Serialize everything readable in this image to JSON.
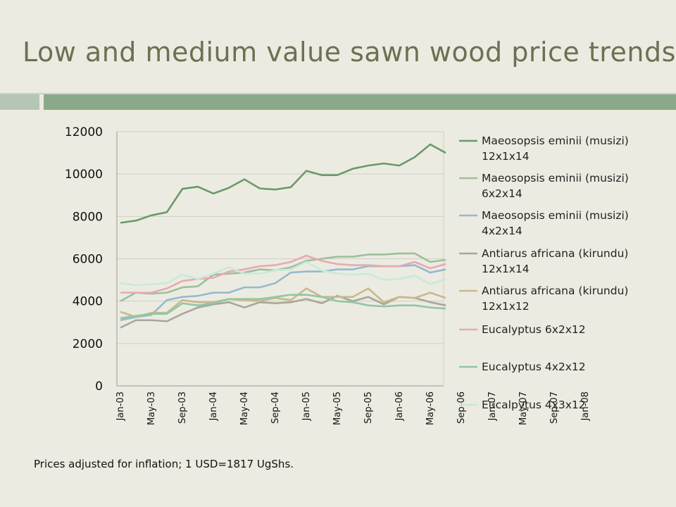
{
  "title": "Low and medium value sawn wood price trends",
  "footnote": "Prices adjusted for inflation; 1 USD=1817 UgShs.",
  "chart_data": {
    "type": "line",
    "title": "",
    "xlabel": "",
    "ylabel": "",
    "ylim": [
      0,
      12000
    ],
    "y_ticks": [
      0,
      2000,
      4000,
      6000,
      8000,
      10000,
      12000
    ],
    "x_tick_labels": [
      "Jan-03",
      "May-03",
      "Sep-03",
      "Jan-04",
      "May-04",
      "Sep-04",
      "Jan-05",
      "May-05",
      "Sep-05",
      "Jan-06",
      "May-06",
      "Sep-06",
      "Jan-07",
      "May-07",
      "Sep-07",
      "Jan-08"
    ],
    "legend_position": "right",
    "grid": "horizontal",
    "series": [
      {
        "name_lines": [
          "Maeosopsis eminii (musizi)",
          "12x1x14"
        ],
        "color": "#6a9a6a",
        "values": [
          7700,
          7800,
          8050,
          8200,
          9300,
          9400,
          9080,
          9350,
          9750,
          9320,
          9270,
          9380,
          10150,
          9950,
          9950,
          10250,
          10400,
          10500,
          10400,
          10800,
          11400,
          11000
        ]
      },
      {
        "name_lines": [
          "Maeosopsis eminii (musizi)",
          "6x2x14"
        ],
        "color": "#9cc09a",
        "values": [
          4000,
          4400,
          4350,
          4400,
          4650,
          4700,
          5250,
          5300,
          5350,
          5500,
          5450,
          5600,
          5900,
          6000,
          6100,
          6100,
          6200,
          6200,
          6250,
          6250,
          5850,
          5950
        ]
      },
      {
        "name_lines": [
          "Maeosopsis eminii (musizi)",
          "4x2x14"
        ],
        "color": "#93bad0",
        "values": [
          3100,
          3250,
          3350,
          4050,
          4200,
          4250,
          4400,
          4400,
          4650,
          4650,
          4850,
          5350,
          5400,
          5400,
          5500,
          5500,
          5650,
          5650,
          5650,
          5700,
          5350,
          5500
        ]
      },
      {
        "name_lines": [
          "Antiarus africana (kirundu)",
          "12x1x14"
        ],
        "color": "#a9a698",
        "values": [
          2750,
          3100,
          3100,
          3050,
          3400,
          3700,
          3850,
          3950,
          3700,
          3950,
          3900,
          3950,
          4100,
          3900,
          4250,
          4000,
          4200,
          3850,
          4200,
          4150,
          3950,
          3800
        ]
      },
      {
        "name_lines": [
          "Antiarus africana (kirundu)",
          "12x1x12"
        ],
        "color": "#c8b98c",
        "values": [
          3500,
          3250,
          3450,
          3450,
          4050,
          3950,
          3950,
          4100,
          4050,
          4000,
          4150,
          4050,
          4600,
          4200,
          4200,
          4200,
          4600,
          3950,
          4200,
          4150,
          4400,
          4150
        ]
      },
      {
        "name_lines": [
          "Eucalyptus 6x2x12"
        ],
        "color": "#e6aab3",
        "values": [
          4400,
          4400,
          4400,
          4600,
          4950,
          5050,
          5100,
          5400,
          5500,
          5650,
          5700,
          5850,
          6150,
          5900,
          5750,
          5700,
          5700,
          5650,
          5650,
          5850,
          5550,
          5750
        ]
      },
      {
        "name_lines": [
          "Eucalyptus 4x2x12"
        ],
        "color": "#8ec8a6",
        "values": [
          3200,
          3300,
          3400,
          3400,
          3900,
          3800,
          3900,
          4100,
          4100,
          4100,
          4200,
          4300,
          4300,
          4200,
          4000,
          3950,
          3800,
          3750,
          3800,
          3800,
          3700,
          3650
        ]
      },
      {
        "name_lines": [
          "Eucalpytus 4x3x12"
        ],
        "color": "#c8ead8",
        "values": [
          4850,
          4750,
          4800,
          4850,
          5250,
          5050,
          5300,
          5600,
          5300,
          5300,
          5450,
          5500,
          5850,
          5450,
          5300,
          5250,
          5300,
          5000,
          5050,
          5200,
          4800,
          5050
        ]
      }
    ]
  }
}
